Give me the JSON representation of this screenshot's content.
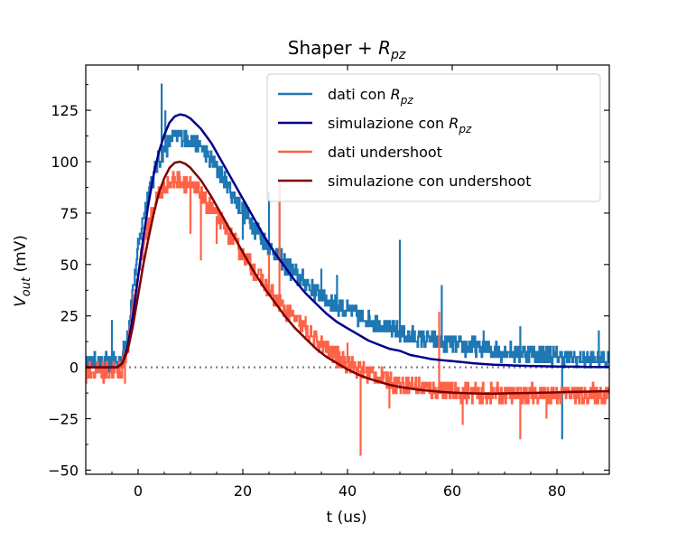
{
  "chart_data": {
    "type": "line",
    "title": "Shaper + R_pz",
    "title_parts": {
      "prefix": "Shaper + ",
      "symbol": "R",
      "sub": "pz"
    },
    "xlabel": "t (us)",
    "ylabel_parts": {
      "symbol": "V",
      "sub": "out",
      "unit": " (mV)"
    },
    "xlim": [
      -10,
      90
    ],
    "ylim": [
      -52,
      147
    ],
    "xticks": [
      0,
      20,
      40,
      60,
      80
    ],
    "yticks": [
      -50,
      -25,
      0,
      25,
      50,
      75,
      100,
      125
    ],
    "grid": false,
    "legend_position": "top-right",
    "reference_line": {
      "y": 0,
      "style": "dotted",
      "color": "#808080"
    },
    "series": [
      {
        "name": "dati con R_pz",
        "legend_parts": {
          "prefix": "dati con ",
          "symbol": "R",
          "sub": "pz"
        },
        "color": "#1f77b4",
        "style": "noisy-step",
        "x": [
          -10,
          -4,
          -3,
          -2,
          -1,
          0,
          1,
          2,
          3,
          4,
          5,
          6,
          7,
          8,
          9,
          10,
          12,
          14,
          16,
          18,
          20,
          22,
          24,
          26,
          28,
          30,
          32,
          34,
          36,
          38,
          40,
          42,
          44,
          46,
          48,
          50,
          52,
          54,
          56,
          58,
          60,
          62,
          64,
          66,
          68,
          70,
          72,
          74,
          76,
          78,
          80,
          82,
          84,
          86,
          88,
          90
        ],
        "y": [
          2,
          2,
          5,
          18,
          38,
          58,
          73,
          86,
          94,
          101,
          106,
          110,
          112,
          113,
          112,
          111,
          107,
          100,
          93,
          84,
          76,
          69,
          62,
          56,
          50,
          45,
          41,
          37,
          33,
          30,
          28,
          25,
          23,
          21,
          19,
          17,
          15,
          14,
          13,
          12,
          11,
          10,
          10,
          9,
          8,
          8,
          7,
          7,
          6,
          6,
          5,
          5,
          4,
          4,
          4,
          4
        ],
        "spikes": [
          [
            4.5,
            138
          ],
          [
            5.2,
            125
          ],
          [
            -5,
            23
          ],
          [
            20,
            62
          ],
          [
            25,
            85
          ],
          [
            27,
            90
          ],
          [
            35,
            48
          ],
          [
            38,
            45
          ],
          [
            50,
            62
          ],
          [
            58,
            40
          ],
          [
            66,
            18
          ],
          [
            73,
            20
          ],
          [
            81,
            -35
          ],
          [
            88,
            18
          ]
        ]
      },
      {
        "name": "simulazione con R_pz",
        "legend_parts": {
          "prefix": "simulazione con ",
          "symbol": "R",
          "sub": "pz"
        },
        "color": "#00008b",
        "style": "smooth",
        "x": [
          -10,
          -4,
          -3,
          -2,
          -1,
          0,
          1,
          2,
          3,
          4,
          5,
          6,
          7,
          8,
          9,
          10,
          12,
          14,
          16,
          18,
          20,
          22,
          24,
          26,
          28,
          30,
          32,
          34,
          36,
          38,
          40,
          42,
          44,
          46,
          48,
          50,
          52,
          54,
          56,
          58,
          60,
          62,
          64,
          66,
          68,
          70,
          72,
          74,
          76,
          78,
          80,
          82,
          84,
          86,
          88,
          90
        ],
        "y": [
          0,
          0,
          2,
          10,
          25,
          44,
          63,
          80,
          94,
          105,
          113,
          119,
          122,
          123,
          122.5,
          121,
          116,
          109,
          100,
          91,
          82,
          73,
          64,
          56,
          49,
          42,
          36,
          31,
          26,
          22,
          19,
          16,
          13,
          11,
          9,
          8,
          6,
          5,
          4,
          3.5,
          3,
          2.5,
          2,
          1.6,
          1.3,
          1.1,
          0.9,
          0.7,
          0.6,
          0.5,
          0.4,
          0.3,
          0.3,
          0.2,
          0.2,
          0.2
        ]
      },
      {
        "name": "dati undershoot",
        "color": "#ff6347",
        "style": "noisy-step",
        "x": [
          -10,
          -4,
          -3,
          -2,
          -1,
          0,
          1,
          2,
          3,
          4,
          5,
          6,
          7,
          8,
          9,
          10,
          12,
          14,
          16,
          18,
          20,
          22,
          24,
          26,
          28,
          30,
          32,
          34,
          36,
          38,
          40,
          42,
          44,
          46,
          48,
          50,
          52,
          54,
          56,
          58,
          60,
          62,
          64,
          66,
          68,
          70,
          72,
          74,
          76,
          78,
          80,
          82,
          84,
          86,
          88,
          90
        ],
        "y": [
          -2,
          -2,
          0,
          10,
          28,
          46,
          60,
          70,
          78,
          84,
          88,
          90,
          91,
          91,
          90,
          88,
          84,
          77,
          70,
          62,
          55,
          48,
          41,
          34,
          28,
          23,
          18,
          13,
          9,
          5,
          2,
          -1,
          -3,
          -5,
          -7,
          -8,
          -9,
          -10,
          -11,
          -11,
          -12,
          -12,
          -13,
          -13,
          -13,
          -13,
          -13,
          -13,
          -13,
          -13,
          -13,
          -13,
          -13,
          -13,
          -13,
          -13
        ],
        "spikes": [
          [
            -2.5,
            -8
          ],
          [
            10,
            65
          ],
          [
            12,
            52
          ],
          [
            15,
            60
          ],
          [
            25,
            55
          ],
          [
            27,
            90
          ],
          [
            32,
            25
          ],
          [
            40,
            12
          ],
          [
            42.5,
            -43
          ],
          [
            48,
            -20
          ],
          [
            57.5,
            27
          ],
          [
            62,
            -28
          ],
          [
            73,
            -35
          ],
          [
            78,
            -25
          ]
        ]
      },
      {
        "name": "simulazione con undershoot",
        "color": "#800000",
        "style": "smooth",
        "x": [
          -10,
          -4,
          -3,
          -2,
          -1,
          0,
          1,
          2,
          3,
          4,
          5,
          6,
          7,
          8,
          9,
          10,
          12,
          14,
          16,
          18,
          20,
          22,
          24,
          26,
          28,
          30,
          32,
          34,
          36,
          38,
          40,
          42,
          44,
          46,
          48,
          50,
          52,
          54,
          56,
          58,
          60,
          62,
          64,
          66,
          68,
          70,
          72,
          74,
          76,
          78,
          80,
          82,
          84,
          86,
          88,
          90
        ],
        "y": [
          0,
          0,
          2,
          8,
          20,
          35,
          50,
          63,
          75,
          85,
          92,
          97,
          99.5,
          100,
          99,
          97,
          91,
          83,
          74,
          65,
          56,
          47,
          39,
          32,
          25,
          19,
          14,
          9,
          5,
          2,
          -1,
          -3.5,
          -5.5,
          -7,
          -8.5,
          -9.5,
          -10.3,
          -11,
          -11.5,
          -12,
          -12.3,
          -12.5,
          -12.7,
          -12.8,
          -12.8,
          -12.7,
          -12.6,
          -12.5,
          -12.4,
          -12.3,
          -12.2,
          -12,
          -11.9,
          -11.8,
          -11.7,
          -11.6
        ]
      }
    ]
  }
}
